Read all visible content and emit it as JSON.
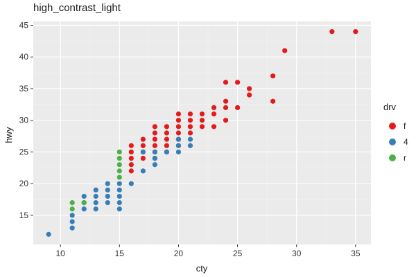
{
  "chart_data": {
    "type": "scatter",
    "title": "high_contrast_light",
    "xlabel": "cty",
    "ylabel": "hwy",
    "xlim": [
      7.7,
      36.3
    ],
    "ylim": [
      10.4,
      45.6
    ],
    "x_ticks": [
      10,
      15,
      20,
      25,
      30,
      35
    ],
    "y_ticks": [
      15,
      20,
      25,
      30,
      35,
      40,
      45
    ],
    "grid": true,
    "panel_background": "#ebebeb",
    "legend": {
      "title": "drv",
      "placement": "right",
      "entries": [
        {
          "label": "f",
          "color": "#e41a1c"
        },
        {
          "label": "4",
          "color": "#377eb8"
        },
        {
          "label": "r",
          "color": "#4daf4a"
        }
      ]
    },
    "series": [
      {
        "name": "f",
        "color": "#e41a1c",
        "points": [
          [
            35,
            44
          ],
          [
            33,
            44
          ],
          [
            29,
            41
          ],
          [
            28,
            37
          ],
          [
            28,
            33
          ],
          [
            26,
            35
          ],
          [
            26,
            34
          ],
          [
            25,
            36
          ],
          [
            25,
            32
          ],
          [
            24,
            36
          ],
          [
            24,
            33
          ],
          [
            24,
            32
          ],
          [
            24,
            30
          ],
          [
            23,
            32
          ],
          [
            23,
            31
          ],
          [
            23,
            29
          ],
          [
            22,
            31
          ],
          [
            22,
            30
          ],
          [
            22,
            29
          ],
          [
            21,
            31
          ],
          [
            21,
            30
          ],
          [
            21,
            29
          ],
          [
            21,
            28
          ],
          [
            20,
            31
          ],
          [
            20,
            30
          ],
          [
            20,
            29
          ],
          [
            20,
            28
          ],
          [
            20,
            27
          ],
          [
            20,
            26
          ],
          [
            19,
            29
          ],
          [
            19,
            28
          ],
          [
            19,
            27
          ],
          [
            19,
            26
          ],
          [
            19,
            25
          ],
          [
            18,
            29
          ],
          [
            18,
            28
          ],
          [
            18,
            27
          ],
          [
            18,
            26
          ],
          [
            18,
            25
          ],
          [
            18,
            24
          ],
          [
            17,
            27
          ],
          [
            17,
            26
          ],
          [
            17,
            25
          ],
          [
            17,
            24
          ],
          [
            16,
            26
          ],
          [
            16,
            25
          ],
          [
            16,
            24
          ],
          [
            16,
            23
          ],
          [
            16,
            22
          ]
        ]
      },
      {
        "name": "4",
        "color": "#377eb8",
        "points": [
          [
            9,
            12
          ],
          [
            11,
            15
          ],
          [
            11,
            14
          ],
          [
            11,
            13
          ],
          [
            12,
            18
          ],
          [
            12,
            17
          ],
          [
            12,
            16
          ],
          [
            13,
            19
          ],
          [
            13,
            18
          ],
          [
            13,
            17
          ],
          [
            13,
            16
          ],
          [
            14,
            20
          ],
          [
            14,
            19
          ],
          [
            14,
            18
          ],
          [
            14,
            17
          ],
          [
            15,
            20
          ],
          [
            15,
            19
          ],
          [
            15,
            18
          ],
          [
            15,
            17
          ],
          [
            15,
            16
          ],
          [
            16,
            20
          ],
          [
            17,
            25
          ],
          [
            17,
            22
          ],
          [
            18,
            25
          ],
          [
            18,
            24
          ],
          [
            18,
            23
          ],
          [
            19,
            25
          ],
          [
            20,
            27
          ],
          [
            20,
            26
          ],
          [
            20,
            25
          ],
          [
            21,
            27
          ],
          [
            21,
            26
          ]
        ]
      },
      {
        "name": "r",
        "color": "#4daf4a",
        "points": [
          [
            11,
            17
          ],
          [
            11,
            16
          ],
          [
            12,
            17
          ],
          [
            15,
            25
          ],
          [
            15,
            24
          ],
          [
            15,
            23
          ],
          [
            15,
            22
          ],
          [
            15,
            21
          ]
        ]
      }
    ]
  }
}
